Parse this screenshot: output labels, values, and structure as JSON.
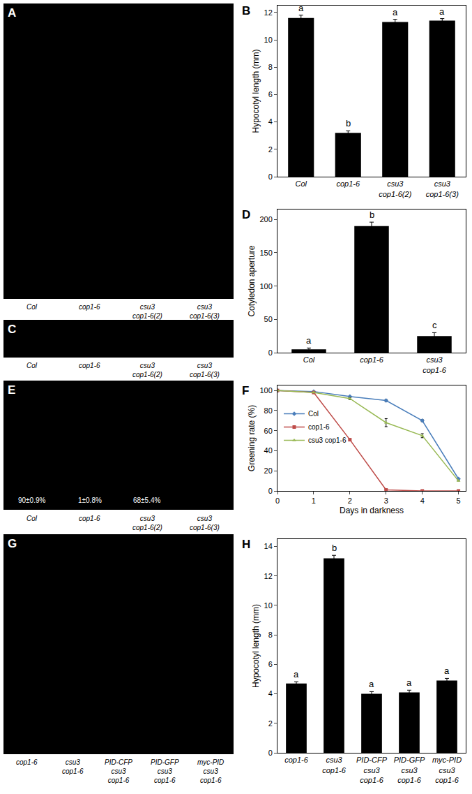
{
  "chart_data": [
    {
      "panel": "B",
      "type": "bar",
      "categories": [
        "Col",
        "cop1-6",
        "csu3 cop1-6(2)",
        "csu3 cop1-6(3)"
      ],
      "values": [
        11.6,
        3.2,
        11.3,
        11.4
      ],
      "errors": [
        0.2,
        0.15,
        0.2,
        0.15
      ],
      "significance": [
        "a",
        "b",
        "a",
        "a"
      ],
      "color": "#000000",
      "y_label": "Hypocotyl length (mm)",
      "ylim": [
        0,
        12.5
      ],
      "yticks": [
        0,
        2,
        4,
        6,
        8,
        10,
        12
      ]
    },
    {
      "panel": "D",
      "type": "bar",
      "categories": [
        "Col",
        "cop1-6",
        "csu3 cop1-6"
      ],
      "values": [
        5,
        190,
        25
      ],
      "errors": [
        2,
        6,
        5
      ],
      "significance": [
        "a",
        "b",
        "c"
      ],
      "color": "#000000",
      "y_label": "Cotyledon aperture",
      "ylim": [
        0,
        215
      ],
      "yticks": [
        0,
        50,
        100,
        150,
        200
      ]
    },
    {
      "panel": "F",
      "type": "line",
      "x": [
        0,
        1,
        2,
        3,
        4,
        5
      ],
      "series": [
        {
          "name": "Col",
          "color": "#4a7ebb",
          "marker": "diamond",
          "values": [
            100,
            99,
            94,
            90,
            70,
            12
          ],
          "errors": [
            0,
            0,
            0,
            1,
            1,
            0
          ]
        },
        {
          "name": "cop1-6",
          "color": "#be4b48",
          "marker": "square",
          "values": [
            100,
            98,
            51,
            1,
            0,
            0
          ],
          "errors": [
            0,
            0,
            1,
            0,
            0,
            0
          ]
        },
        {
          "name": "csu3 cop1-6",
          "color": "#98b954",
          "marker": "triangle-up",
          "values": [
            100,
            98,
            92,
            68,
            55,
            10
          ],
          "errors": [
            0,
            0,
            1,
            4,
            2,
            0
          ]
        }
      ],
      "x_label": "Days in darkness",
      "y_label": "Greening rate (%)",
      "xlim": [
        0,
        5.2
      ],
      "xticks": [
        0,
        1,
        2,
        3,
        4,
        5
      ],
      "ylim": [
        0,
        105
      ],
      "yticks": [
        0,
        20,
        40,
        60,
        80,
        100
      ],
      "legend": "upper left"
    },
    {
      "panel": "H",
      "type": "bar",
      "categories": [
        "cop1-6",
        "csu3 cop1-6",
        "PID-CFP csu3 cop1-6",
        "PID-GFP csu3 cop1-6",
        "myc-PID csu3 cop1-6"
      ],
      "values": [
        4.7,
        13.2,
        4.0,
        4.1,
        4.9
      ],
      "errors": [
        0.12,
        0.2,
        0.15,
        0.15,
        0.15
      ],
      "significance": [
        "a",
        "b",
        "a",
        "a",
        "a"
      ],
      "color": "#000000",
      "y_label": "Hypocotyl length (mm)",
      "ylim": [
        0,
        14.5
      ],
      "yticks": [
        0,
        2,
        4,
        6,
        8,
        10,
        12,
        14
      ]
    }
  ],
  "photo_panels": [
    {
      "panel": "A",
      "labels": [
        "Col",
        "cop1-6",
        "csu3 cop1-6(2)",
        "csu3 cop1-6(3)"
      ]
    },
    {
      "panel": "C",
      "labels": [
        "Col",
        "cop1-6",
        "csu3 cop1-6(2)",
        "csu3 cop1-6(3)"
      ]
    },
    {
      "panel": "E",
      "labels": [
        "Col",
        "cop1-6",
        "csu3 cop1-6(2)",
        "csu3 cop1-6(3)"
      ],
      "captions": [
        "90±0.9%",
        "1±0.8%",
        "68±5.4%",
        null
      ]
    },
    {
      "panel": "G",
      "labels": [
        "cop1-6",
        "csu3 cop1-6",
        "PID-CFP csu3 cop1-6",
        "PID-GFP csu3 cop1-6",
        "myc-PID csu3 cop1-6"
      ]
    }
  ]
}
